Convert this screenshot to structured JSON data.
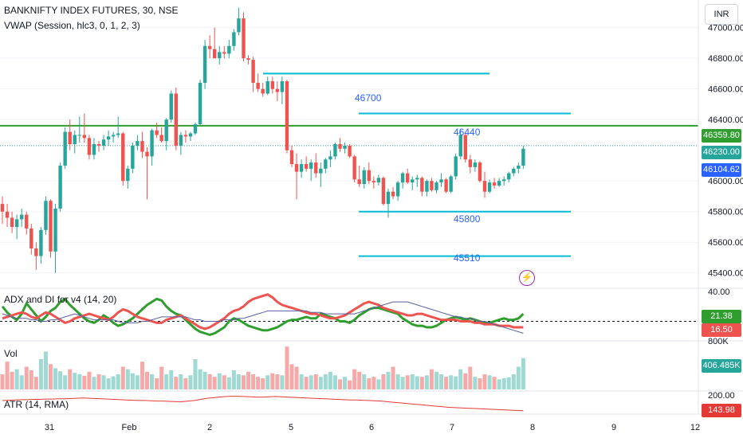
{
  "header": {
    "title": "BANKNIFTY INDEX FUTURES, 30, NSE",
    "indicator": "VWAP (Session, hlc3, 0, 1, 2, 3)",
    "currency": "INR"
  },
  "panes": {
    "adx_title": "ADX and DI for v4 (14, 20)",
    "vol_title": "Vol",
    "atr_title": "ATR (14, RMA)"
  },
  "colors": {
    "up": "#26a69a",
    "down": "#ef5350",
    "level": "#00bcd4",
    "vwap": "#2f9e2f",
    "adx": "#5b5e9e",
    "atr": "#e53935"
  },
  "chart_data": [
    {
      "type": "candlestick",
      "title": "BANKNIFTY INDEX FUTURES, 30, NSE",
      "x_ticks": [
        "31",
        "Feb",
        "2",
        "5",
        "6",
        "7",
        "8",
        "9",
        "12"
      ],
      "y_ticks": [
        "47000.00",
        "46800.00",
        "46600.00",
        "46400.00",
        "46000.00",
        "45800.00",
        "45600.00",
        "45400.00"
      ],
      "ylim": [
        45300,
        47180
      ],
      "ohlc": [
        [
          45850,
          45900,
          45720,
          45800
        ],
        [
          45800,
          45850,
          45700,
          45760
        ],
        [
          45760,
          45800,
          45660,
          45700
        ],
        [
          45700,
          45780,
          45620,
          45750
        ],
        [
          45750,
          45820,
          45700,
          45780
        ],
        [
          45780,
          45800,
          45650,
          45690
        ],
        [
          45690,
          45720,
          45520,
          45560
        ],
        [
          45560,
          45600,
          45420,
          45510
        ],
        [
          45510,
          45700,
          45460,
          45680
        ],
        [
          45680,
          45900,
          45650,
          45870
        ],
        [
          45870,
          45880,
          45500,
          45540
        ],
        [
          45540,
          45850,
          45400,
          45820
        ],
        [
          45820,
          46120,
          45800,
          46100
        ],
        [
          46100,
          46350,
          46080,
          46320
        ],
        [
          46320,
          46400,
          46200,
          46240
        ],
        [
          46240,
          46330,
          46180,
          46300
        ],
        [
          46300,
          46420,
          46250,
          46300
        ],
        [
          46300,
          46440,
          46250,
          46280
        ],
        [
          46280,
          46300,
          46140,
          46170
        ],
        [
          46170,
          46280,
          46140,
          46240
        ],
        [
          46240,
          46260,
          46190,
          46230
        ],
        [
          46230,
          46300,
          46200,
          46270
        ],
        [
          46270,
          46330,
          46230,
          46290
        ],
        [
          46290,
          46320,
          46250,
          46300
        ],
        [
          46300,
          46420,
          46280,
          46310
        ],
        [
          46310,
          46320,
          45970,
          46000
        ],
        [
          46000,
          46100,
          45950,
          46080
        ],
        [
          46080,
          46250,
          46050,
          46230
        ],
        [
          46230,
          46300,
          46200,
          46260
        ],
        [
          46260,
          46320,
          46150,
          46190
        ],
        [
          46190,
          46220,
          45880,
          46160
        ],
        [
          46160,
          46340,
          46100,
          46330
        ],
        [
          46330,
          46380,
          46280,
          46300
        ],
        [
          46300,
          46350,
          46250,
          46260
        ],
        [
          46260,
          46410,
          46200,
          46400
        ],
        [
          46400,
          46590,
          46380,
          46570
        ],
        [
          46570,
          46610,
          46200,
          46230
        ],
        [
          46230,
          46320,
          46170,
          46300
        ],
        [
          46300,
          46330,
          46250,
          46290
        ],
        [
          46290,
          46320,
          46260,
          46310
        ],
        [
          46310,
          46380,
          46300,
          46370
        ],
        [
          46370,
          46660,
          46360,
          46640
        ],
        [
          46640,
          46920,
          46600,
          46880
        ],
        [
          46880,
          46950,
          46800,
          46860
        ],
        [
          46860,
          47000,
          46800,
          46800
        ],
        [
          46800,
          46880,
          46760,
          46840
        ],
        [
          46840,
          46880,
          46800,
          46830
        ],
        [
          46830,
          46920,
          46800,
          46880
        ],
        [
          46880,
          46990,
          46850,
          46970
        ],
        [
          46970,
          47130,
          46950,
          47060
        ],
        [
          47060,
          47100,
          46780,
          46800
        ],
        [
          46800,
          46820,
          46760,
          46790
        ],
        [
          46790,
          46810,
          46580,
          46640
        ],
        [
          46640,
          46700,
          46580,
          46600
        ],
        [
          46600,
          46640,
          46550,
          46570
        ],
        [
          46570,
          46680,
          46560,
          46650
        ],
        [
          46650,
          46680,
          46570,
          46600
        ],
        [
          46600,
          46650,
          46520,
          46580
        ],
        [
          46580,
          46680,
          46500,
          46650
        ],
        [
          46650,
          46660,
          46180,
          46200
        ],
        [
          46200,
          46230,
          46090,
          46110
        ],
        [
          46110,
          46180,
          45880,
          46060
        ],
        [
          46060,
          46140,
          46020,
          46110
        ],
        [
          46110,
          46160,
          46060,
          46080
        ],
        [
          46080,
          46140,
          46000,
          46120
        ],
        [
          46120,
          46180,
          46020,
          46050
        ],
        [
          46050,
          46120,
          45960,
          46080
        ],
        [
          46080,
          46150,
          46050,
          46140
        ],
        [
          46140,
          46200,
          46090,
          46160
        ],
        [
          46160,
          46250,
          46140,
          46240
        ],
        [
          46240,
          46280,
          46190,
          46210
        ],
        [
          46210,
          46250,
          46180,
          46230
        ],
        [
          46230,
          46240,
          46150,
          46160
        ],
        [
          46160,
          46170,
          45990,
          46010
        ],
        [
          46010,
          46100,
          45960,
          45980
        ],
        [
          45980,
          46090,
          45950,
          46070
        ],
        [
          46070,
          46120,
          45980,
          46000
        ],
        [
          46000,
          46030,
          45950,
          45990
        ],
        [
          45990,
          46040,
          45970,
          46020
        ],
        [
          46020,
          46030,
          45840,
          45850
        ],
        [
          45850,
          45950,
          45760,
          45930
        ],
        [
          45930,
          45960,
          45880,
          45900
        ],
        [
          45900,
          46000,
          45870,
          45990
        ],
        [
          45990,
          46060,
          45950,
          46050
        ],
        [
          46050,
          46080,
          45980,
          45990
        ],
        [
          45990,
          46030,
          45940,
          46010
        ],
        [
          46010,
          46040,
          45960,
          46020
        ],
        [
          46020,
          46030,
          45900,
          45930
        ],
        [
          45930,
          46010,
          45900,
          46000
        ],
        [
          46000,
          46020,
          45930,
          45940
        ],
        [
          45940,
          46000,
          45920,
          45990
        ],
        [
          45990,
          46050,
          45960,
          46010
        ],
        [
          46010,
          46020,
          45920,
          45930
        ],
        [
          45930,
          46040,
          45920,
          46030
        ],
        [
          46030,
          46180,
          46010,
          46160
        ],
        [
          46160,
          46340,
          46140,
          46300
        ],
        [
          46300,
          46320,
          46120,
          46140
        ],
        [
          46140,
          46170,
          46050,
          46090
        ],
        [
          46090,
          46140,
          46060,
          46120
        ],
        [
          46120,
          46130,
          45990,
          46000
        ],
        [
          46000,
          46060,
          45890,
          45930
        ],
        [
          45930,
          46010,
          45920,
          45990
        ],
        [
          45990,
          46020,
          45950,
          45970
        ],
        [
          45970,
          46020,
          45960,
          46000
        ],
        [
          46000,
          46030,
          45970,
          46010
        ],
        [
          46010,
          46060,
          45990,
          46050
        ],
        [
          46050,
          46090,
          46030,
          46080
        ],
        [
          46080,
          46120,
          46050,
          46100
        ],
        [
          46100,
          46230,
          46080,
          46210
        ]
      ],
      "levels": [
        46700,
        46440,
        45800,
        45510
      ],
      "level_labels": [
        "46700",
        "46440",
        "45800",
        "45510"
      ],
      "vwap_level": 46359.8,
      "markers": [
        {
          "label": "46359.80",
          "value": 46359.8,
          "color": "#2f9e2f"
        },
        {
          "label": "46230.00",
          "value": 46230.0,
          "color": "#26a69a"
        },
        {
          "label": "46104.62",
          "value": 46104.62,
          "color": "#2962ff"
        }
      ]
    },
    {
      "type": "line",
      "title": "ADX and DI for v4 (14, 20)",
      "series": [
        {
          "name": "DI+",
          "color": "#2f9e2f",
          "values": [
            30,
            26,
            23,
            21,
            25,
            32,
            28,
            24,
            20,
            23,
            27,
            29,
            33,
            35,
            31,
            28,
            25,
            22,
            20,
            19,
            21,
            24,
            22,
            19,
            17,
            18,
            20,
            22,
            25,
            28,
            31,
            33,
            35,
            34,
            30,
            27,
            25,
            24,
            21,
            18,
            15,
            13,
            12,
            11,
            12,
            14,
            16,
            20,
            22,
            21,
            19,
            17,
            16,
            15,
            14,
            14,
            15,
            16,
            18,
            20,
            21,
            21,
            22,
            23,
            22,
            22,
            25,
            24,
            23,
            22,
            20,
            20,
            19,
            21,
            24,
            26,
            28,
            29,
            29,
            28,
            27,
            26,
            25,
            22,
            20,
            18,
            17,
            17,
            16,
            16,
            17,
            19,
            21,
            22,
            23,
            22,
            21,
            22,
            21,
            20,
            19,
            19,
            20,
            21,
            22,
            21,
            21,
            22,
            25
          ]
        },
        {
          "name": "DI-",
          "color": "#ef5350",
          "values": [
            22,
            23,
            24,
            25,
            26,
            25,
            23,
            22,
            24,
            26,
            25,
            23,
            21,
            19,
            20,
            22,
            23,
            24,
            25,
            24,
            23,
            22,
            21,
            23,
            26,
            28,
            27,
            25,
            23,
            22,
            21,
            20,
            19,
            19,
            21,
            22,
            23,
            24,
            22,
            20,
            18,
            16,
            15,
            16,
            18,
            20,
            22,
            25,
            27,
            28,
            30,
            33,
            35,
            36,
            37,
            38,
            36,
            33,
            31,
            30,
            29,
            28,
            27,
            26,
            25,
            25,
            24,
            23,
            22,
            22,
            23,
            24,
            26,
            28,
            30,
            32,
            33,
            32,
            31,
            29,
            28,
            27,
            26,
            25,
            24,
            24,
            25,
            25,
            24,
            23,
            22,
            21,
            21,
            21,
            21,
            20,
            20,
            20,
            19,
            19,
            18,
            18,
            18,
            17,
            17,
            17,
            16,
            16,
            16
          ]
        },
        {
          "name": "ADX",
          "color": "#5b5e9e",
          "values": [
            25,
            24,
            23,
            22,
            22,
            22,
            21,
            21,
            20,
            20,
            21,
            21,
            22,
            23,
            24,
            25,
            24,
            23,
            22,
            21,
            21,
            21,
            21,
            21,
            20,
            19,
            19,
            19,
            19,
            20,
            20,
            21,
            22,
            23,
            23,
            23,
            23,
            23,
            23,
            22,
            21,
            21,
            20,
            20,
            20,
            20,
            21,
            21,
            21,
            22,
            22,
            23,
            24,
            25,
            26,
            27,
            27,
            27,
            27,
            27,
            27,
            27,
            27,
            27,
            26,
            26,
            26,
            25,
            25,
            25,
            25,
            25,
            25,
            25,
            26,
            27,
            28,
            29,
            30,
            31,
            32,
            33,
            33,
            33,
            33,
            32,
            31,
            30,
            29,
            28,
            27,
            26,
            25,
            24,
            23,
            23,
            22,
            22,
            21,
            20,
            20,
            19,
            18,
            17,
            16,
            15,
            14,
            13,
            12
          ]
        }
      ],
      "reference_line": 20,
      "value_tags": [
        "21.38",
        "16.50"
      ]
    },
    {
      "type": "bar",
      "title": "Vol",
      "values": [
        30,
        55,
        35,
        40,
        28,
        45,
        38,
        25,
        60,
        75,
        50,
        42,
        36,
        28,
        40,
        33,
        30,
        27,
        35,
        25,
        30,
        28,
        22,
        26,
        30,
        45,
        40,
        32,
        28,
        55,
        35,
        30,
        22,
        45,
        30,
        38,
        25,
        30,
        22,
        28,
        60,
        40,
        35,
        30,
        25,
        32,
        28,
        24,
        38,
        30,
        28,
        35,
        30,
        25,
        22,
        28,
        32,
        30,
        28,
        85,
        50,
        45,
        30,
        25,
        28,
        30,
        25,
        30,
        35,
        28,
        20,
        25,
        18,
        40,
        35,
        30,
        22,
        25,
        20,
        30,
        35,
        45,
        30,
        25,
        28,
        30,
        26,
        25,
        28,
        40,
        35,
        30,
        25,
        28,
        26,
        40,
        32,
        45,
        25,
        22,
        30,
        28,
        25,
        20,
        22,
        24,
        30,
        45,
        62
      ],
      "value_tags": [
        "406.485K",
        "800K"
      ]
    },
    {
      "type": "line",
      "title": "ATR (14, RMA)",
      "values": [
        180,
        181,
        182,
        183,
        183,
        184,
        184,
        185,
        185,
        186,
        186,
        187,
        188,
        189,
        188,
        187,
        186,
        185,
        184,
        183,
        182,
        181,
        180,
        180,
        179,
        178,
        178,
        177,
        176,
        176,
        178,
        180,
        184,
        188,
        190,
        192,
        194,
        195,
        195,
        194,
        193,
        192,
        192,
        193,
        194,
        193,
        192,
        191,
        190,
        189,
        188,
        187,
        186,
        185,
        184,
        183,
        182,
        182,
        181,
        180,
        179,
        178,
        176,
        174,
        172,
        170,
        168,
        166,
        164,
        162,
        160,
        158,
        156,
        155,
        154,
        153,
        152,
        151,
        150,
        149,
        148,
        147,
        146,
        145,
        144
      ],
      "y_ticks": [
        "200.00"
      ],
      "value_tag": "143.98"
    }
  ]
}
